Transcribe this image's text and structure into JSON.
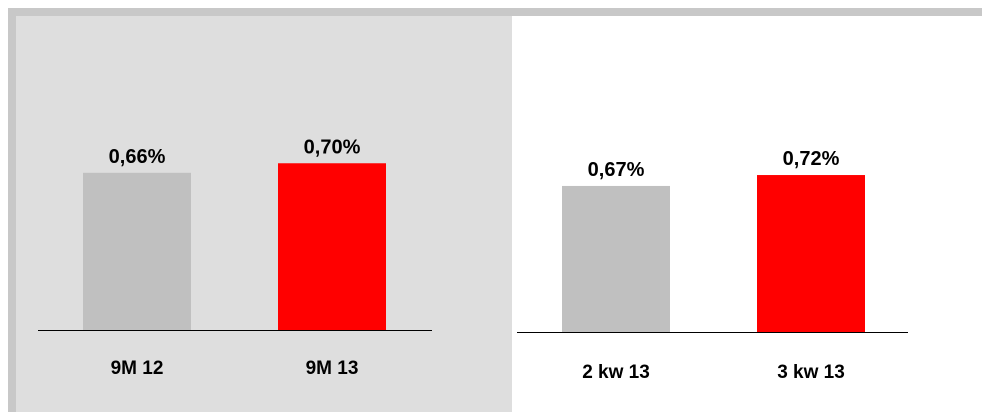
{
  "chart_data": [
    {
      "type": "bar",
      "categories": [
        "9M 12",
        "9M 13"
      ],
      "values": [
        0.66,
        0.7
      ],
      "value_labels": [
        "0,66%",
        "0,70%"
      ],
      "colors": [
        "#c0c0c0",
        "#ff0000"
      ],
      "title": "",
      "xlabel": "",
      "ylabel": "",
      "ylim": [
        0,
        0.8
      ],
      "grid": false,
      "background": "#dedede"
    },
    {
      "type": "bar",
      "categories": [
        "2 kw 13",
        "3 kw 13"
      ],
      "values": [
        0.67,
        0.72
      ],
      "value_labels": [
        "0,67%",
        "0,72%"
      ],
      "colors": [
        "#c0c0c0",
        "#ff0000"
      ],
      "title": "",
      "xlabel": "",
      "ylabel": "",
      "ylim": [
        0,
        0.8
      ],
      "grid": false,
      "background": "#ffffff"
    }
  ]
}
